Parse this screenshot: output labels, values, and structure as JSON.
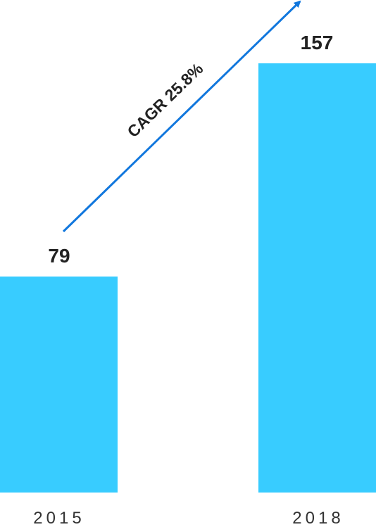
{
  "chart_data": {
    "type": "bar",
    "categories": [
      "2015",
      "2018"
    ],
    "values": [
      79,
      157
    ],
    "value_labels": [
      "79",
      "157"
    ],
    "title": "",
    "xlabel": "",
    "ylabel": "",
    "ylim": [
      0,
      157
    ],
    "grid": false,
    "annotation": {
      "text": "CAGR 25.8%",
      "from": "2015",
      "to": "2018"
    },
    "colors": {
      "bar": "#38CCFF",
      "arrow": "#1177DD",
      "label": "#222222",
      "tick": "#333333"
    }
  }
}
